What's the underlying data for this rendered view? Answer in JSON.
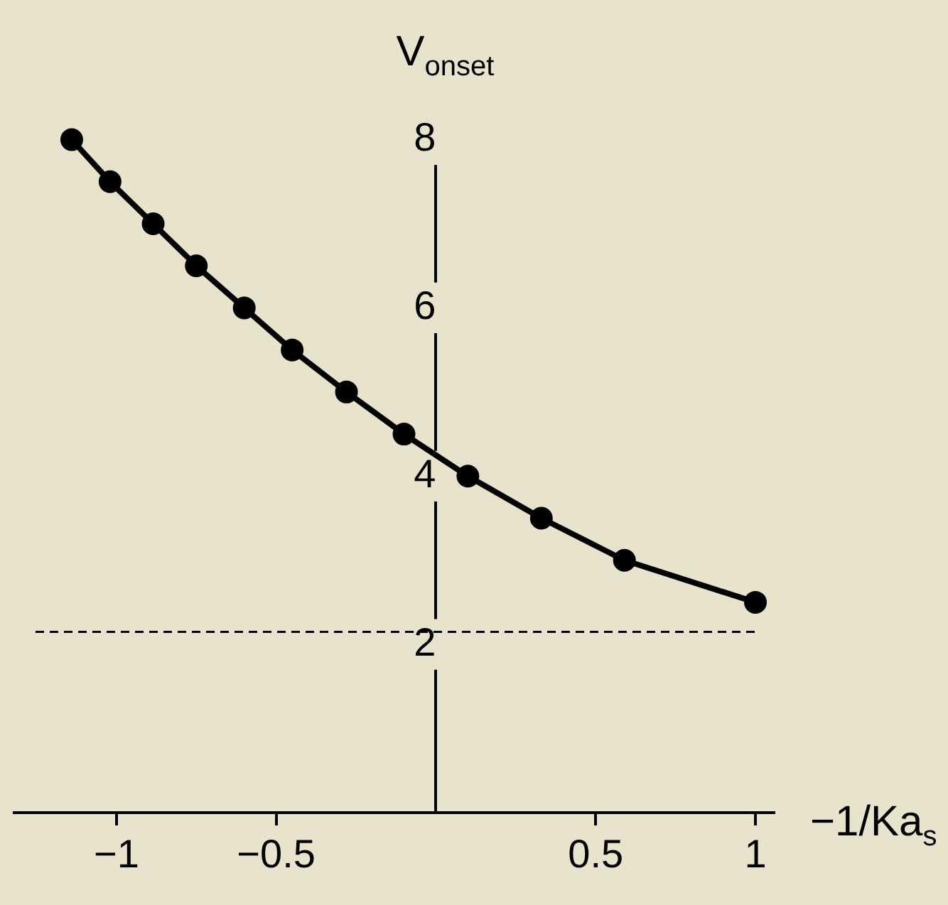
{
  "chart_data": {
    "type": "line",
    "xlabel": "−1/Ka$_{s}$",
    "ylabel": "V$_{onset}$",
    "x": [
      -1.14,
      -1.02,
      -0.885,
      -0.75,
      -0.6,
      -0.45,
      -0.28,
      -0.1,
      0.1,
      0.33,
      0.59,
      1
    ],
    "series": [
      {
        "color": "#000000",
        "values": [
          8,
          7.5,
          7,
          6.5,
          6,
          5.5,
          5,
          4.5,
          4,
          3.5,
          3,
          2.5
        ]
      }
    ],
    "xlim": [
      -1.32,
      1.06
    ],
    "ylim": [
      0,
      8.14
    ],
    "xticks": [
      {
        "value": -1,
        "label": "−1"
      },
      {
        "value": -0.5,
        "label": "−0.5"
      },
      0.5,
      1
    ],
    "yticks": [
      2,
      4,
      6,
      8
    ],
    "ref_lines": [
      {
        "axis": "y",
        "value": 2.15,
        "line_style": "dashed",
        "color": "#000000"
      }
    ],
    "marker": "circle",
    "line_style": "solid",
    "grid": false,
    "legend": false
  }
}
